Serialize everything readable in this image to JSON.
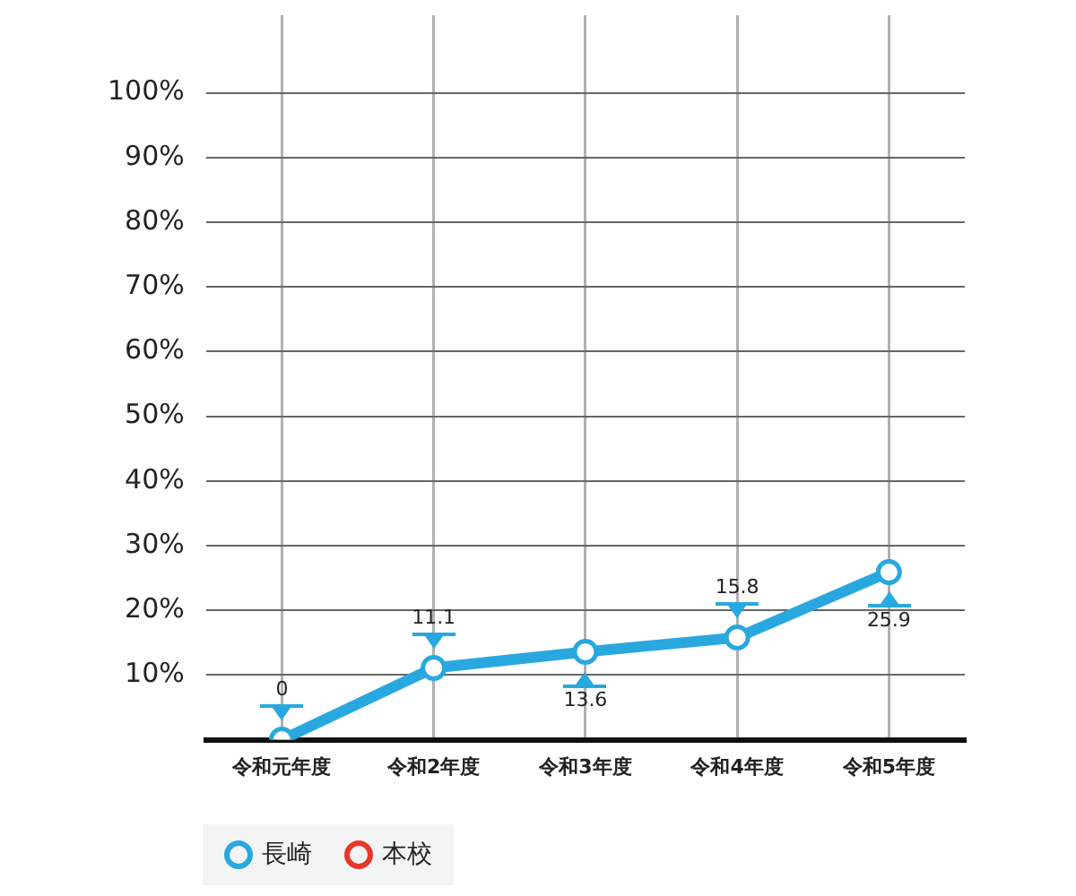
{
  "chart_data": {
    "type": "line",
    "categories": [
      "令和元年度",
      "令和2年度",
      "令和3年度",
      "令和4年度",
      "令和5年度"
    ],
    "series": [
      {
        "name": "長崎",
        "color": "#29a8e0",
        "values": [
          0,
          11.1,
          13.6,
          15.8,
          25.9
        ]
      },
      {
        "name": "本校",
        "color": "#e8382a",
        "values": [
          null,
          null,
          null,
          null,
          null
        ]
      }
    ],
    "ylim": [
      0,
      112
    ],
    "yticks": [
      {
        "value": 10,
        "label": "10%"
      },
      {
        "value": 20,
        "label": "20%"
      },
      {
        "value": 30,
        "label": "30%"
      },
      {
        "value": 40,
        "label": "40%"
      },
      {
        "value": 50,
        "label": "50%"
      },
      {
        "value": 60,
        "label": "60%"
      },
      {
        "value": 70,
        "label": "70%"
      },
      {
        "value": 80,
        "label": "80%"
      },
      {
        "value": 90,
        "label": "90%"
      },
      {
        "value": 100,
        "label": "100%"
      }
    ],
    "grid": true,
    "legend": "bottom left",
    "marker": "circle",
    "line_style": "solid",
    "data_labels": true
  }
}
